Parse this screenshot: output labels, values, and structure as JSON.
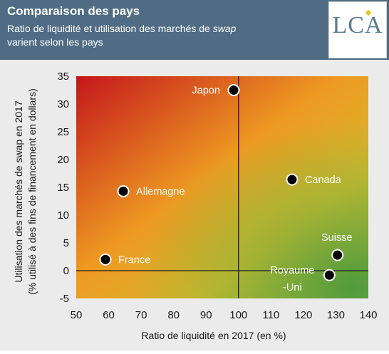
{
  "header": {
    "title": "Comparaison des pays",
    "subtitle_line1_pre": "Ratio de liquidité et utilisation des marchés de ",
    "subtitle_line1_em": "swap",
    "subtitle_line2": "varient selon les pays",
    "logo_text": "LCA"
  },
  "colors": {
    "header_bg": "#4f6c84",
    "quadrant_top_left": "#c4161c",
    "quadrant_mid": "#ee9a22",
    "quadrant_bottom_right": "#5e9e3d",
    "point": "#000000",
    "label_on_dark": "#ffffff",
    "label_on_light": "#333333"
  },
  "chart_data": {
    "type": "scatter",
    "title": "",
    "xlabel": "Ratio de liquidité en 2017 (en %)",
    "ylabel": "Utilisation des marchés de swap en 2017",
    "ylabel2": "(% utilisé à des fins de financement en dollars)",
    "xlim": [
      50,
      140
    ],
    "ylim": [
      -5,
      35
    ],
    "xticks": [
      50,
      60,
      70,
      80,
      90,
      100,
      110,
      120,
      130,
      140
    ],
    "yticks": [
      -5,
      0,
      5,
      10,
      15,
      20,
      25,
      30,
      35
    ],
    "reference_lines": {
      "x": 100,
      "y": 0
    },
    "grid": false,
    "background": "gradient: red (top-left) to orange to green (bottom-right)",
    "points": [
      {
        "label": "Japon",
        "x": 98.5,
        "y": 32.5,
        "label_position": "left",
        "label_color": "light"
      },
      {
        "label": "Allemagne",
        "x": 64.5,
        "y": 14.3,
        "label_position": "right",
        "label_color": "light"
      },
      {
        "label": "France",
        "x": 59,
        "y": 2,
        "label_position": "right",
        "label_color": "light"
      },
      {
        "label": "Canada",
        "x": 116.5,
        "y": 16.4,
        "label_position": "right",
        "label_color": "light"
      },
      {
        "label": "Suisse",
        "x": 130.5,
        "y": 2.8,
        "label_position": "above-left",
        "label_color": "light"
      },
      {
        "label": "Royaume-Uni",
        "label_line1": "Royaume",
        "label_line2": "-Uni",
        "x": 128,
        "y": -0.8,
        "label_position": "left",
        "label_color": "light"
      }
    ]
  }
}
